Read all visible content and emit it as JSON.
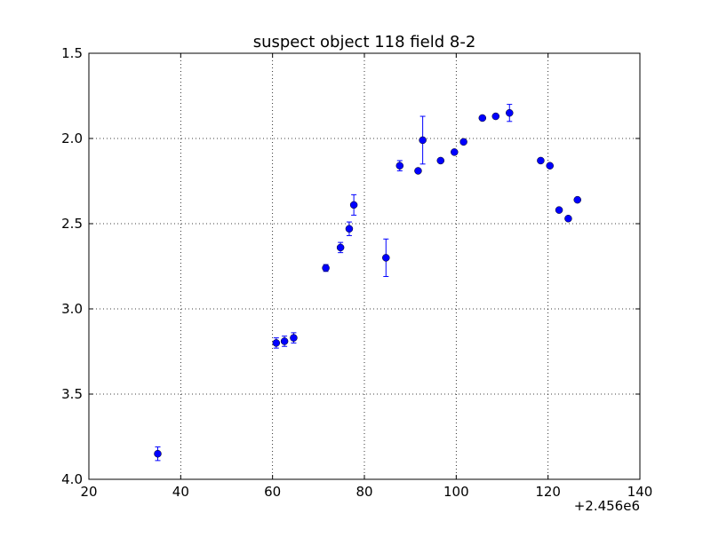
{
  "chart_data": {
    "type": "scatter",
    "title": "suspect object 118 field 8-2",
    "xlabel": "",
    "ylabel": "",
    "x_offset_label": "+2.456e6",
    "xlim": [
      20,
      140
    ],
    "ylim": [
      4.0,
      1.5
    ],
    "y_inverted": true,
    "grid": true,
    "x_ticks": [
      20,
      40,
      60,
      80,
      100,
      120,
      140
    ],
    "x_tick_labels": [
      "20",
      "40",
      "60",
      "80",
      "100",
      "120",
      "140"
    ],
    "y_ticks": [
      1.5,
      2.0,
      2.5,
      3.0,
      3.5,
      4.0
    ],
    "y_tick_labels": [
      "1.5",
      "2.0",
      "2.5",
      "3.0",
      "3.5",
      "4.0"
    ],
    "marker_color": "#0000ff",
    "points": [
      {
        "x": 35.0,
        "y": 3.85,
        "err": 0.04
      },
      {
        "x": 60.8,
        "y": 3.2,
        "err": 0.03
      },
      {
        "x": 62.6,
        "y": 3.19,
        "err": 0.03
      },
      {
        "x": 64.6,
        "y": 3.17,
        "err": 0.03
      },
      {
        "x": 71.6,
        "y": 2.76,
        "err": 0.02
      },
      {
        "x": 74.8,
        "y": 2.64,
        "err": 0.03
      },
      {
        "x": 76.7,
        "y": 2.53,
        "err": 0.04
      },
      {
        "x": 77.7,
        "y": 2.39,
        "err": 0.06
      },
      {
        "x": 84.7,
        "y": 2.7,
        "err": 0.11
      },
      {
        "x": 87.7,
        "y": 2.16,
        "err": 0.03
      },
      {
        "x": 91.7,
        "y": 2.19,
        "err": 0.01
      },
      {
        "x": 92.7,
        "y": 2.01,
        "err": 0.14
      },
      {
        "x": 96.6,
        "y": 2.13,
        "err": 0.01
      },
      {
        "x": 99.6,
        "y": 2.08,
        "err": 0.01
      },
      {
        "x": 101.6,
        "y": 2.02,
        "err": 0.01
      },
      {
        "x": 105.7,
        "y": 1.88,
        "err": 0.01
      },
      {
        "x": 108.6,
        "y": 1.87,
        "err": 0.01
      },
      {
        "x": 111.6,
        "y": 1.85,
        "err": 0.05
      },
      {
        "x": 118.4,
        "y": 2.13,
        "err": 0.01
      },
      {
        "x": 120.4,
        "y": 2.16,
        "err": 0.01
      },
      {
        "x": 122.4,
        "y": 2.42,
        "err": 0.01
      },
      {
        "x": 124.4,
        "y": 2.47,
        "err": 0.01
      },
      {
        "x": 126.4,
        "y": 2.36,
        "err": 0.01
      }
    ]
  }
}
